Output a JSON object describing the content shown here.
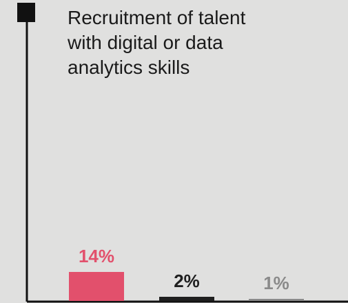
{
  "chart_data": {
    "type": "bar",
    "title_lines": [
      "Recruitment of talent",
      "with digital or data",
      "analytics skills"
    ],
    "categories": [
      "",
      "",
      ""
    ],
    "values": [
      14,
      2,
      1
    ],
    "value_labels": [
      "14%",
      "2%",
      "1%"
    ],
    "colors": [
      "#e2506c",
      "#1f1f1f",
      "#8a8a8a"
    ],
    "label_colors": [
      "#e2506c",
      "#1f1f1f",
      "#8a8a8a"
    ],
    "ylim": [
      0,
      100
    ],
    "grid": false,
    "legend": "none",
    "xlabel": "",
    "ylabel": ""
  }
}
